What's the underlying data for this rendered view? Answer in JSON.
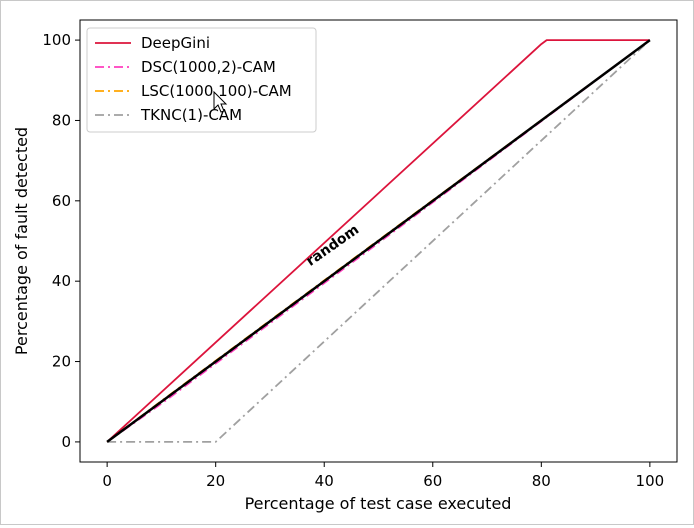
{
  "chart_data": {
    "type": "line",
    "title": "",
    "xlabel": "Percentage of test case executed",
    "ylabel": "Percentage of fault detected",
    "xlim": [
      -5,
      105
    ],
    "ylim": [
      -5,
      105
    ],
    "xticks": [
      0,
      20,
      40,
      60,
      80,
      100
    ],
    "yticks": [
      0,
      20,
      40,
      60,
      80,
      100
    ],
    "grid": false,
    "legend_position": "top-left",
    "annotation": {
      "text": "random",
      "x": 42,
      "y": 48,
      "rotation_deg": -35
    },
    "series": [
      {
        "name": "DeepGini",
        "color": "#dc143c",
        "dash": "solid",
        "x": [
          0,
          80,
          81,
          100
        ],
        "y": [
          0,
          99,
          100,
          100
        ]
      },
      {
        "name": "DSC(1000,2)-CAM",
        "color": "#ff3fbf",
        "dash": "dashdot",
        "x": [
          0,
          10,
          50,
          100
        ],
        "y": [
          0,
          9.5,
          49.5,
          100
        ]
      },
      {
        "name": "LSC(1000,100)-CAM",
        "color": "#ffa500",
        "dash": "dashdot",
        "x": [
          0,
          10,
          50,
          100
        ],
        "y": [
          0,
          10.2,
          50.2,
          100
        ]
      },
      {
        "name": "TKNC(1)-CAM",
        "color": "#a0a0a0",
        "dash": "dashdot",
        "x": [
          0,
          20,
          100
        ],
        "y": [
          0,
          0,
          100
        ]
      },
      {
        "name": "",
        "color": "#000000",
        "dash": "solid",
        "x": [
          0,
          100
        ],
        "y": [
          0,
          100
        ]
      }
    ]
  }
}
